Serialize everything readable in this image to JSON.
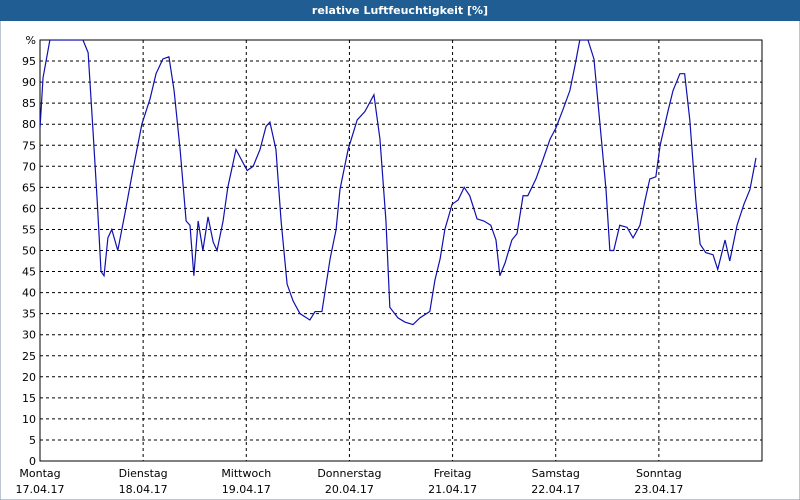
{
  "chart_data": {
    "type": "line",
    "title": "relative Luftfeuchtigkeit [%]",
    "x": [
      0,
      0.7,
      2.3,
      10,
      11.2,
      12.3,
      13.3,
      14.2,
      14.9,
      15.8,
      16.7,
      18.1,
      19.8,
      21.6,
      23.7,
      25.6,
      27,
      28.6,
      30,
      31.2,
      32.6,
      34,
      34.9,
      35.8,
      36.8,
      37.9,
      39.1,
      40.3,
      41.2,
      42.6,
      43.7,
      45.6,
      48.2,
      49.6,
      51.2,
      52.6,
      53.5,
      54.9,
      56.1,
      57.5,
      58.9,
      60.5,
      62.8,
      64,
      65.6,
      67.5,
      68.9,
      69.8,
      71.7,
      73.8,
      75.6,
      77.7,
      79.1,
      80.5,
      81.4,
      83.3,
      84.9,
      86.8,
      88.4,
      90.7,
      91.9,
      93.1,
      94.2,
      95.9,
      97.3,
      98.7,
      100,
      101.7,
      103.3,
      104.9,
      106.1,
      107,
      108.2,
      109.8,
      111,
      112.4,
      113.5,
      115.4,
      117,
      118.7,
      120,
      121.7,
      123.3,
      124.5,
      125.6,
      127.5,
      128.9,
      130.3,
      131.7,
      132.6,
      133.5,
      134.9,
      136.6,
      138,
      139.6,
      140.8,
      141.9,
      143.3,
      144.3,
      146.1,
      147.3,
      148.9,
      150,
      151.2,
      152.6,
      153.6,
      154.9,
      156.6,
      157.7,
      159.4,
      160.5,
      162.2,
      163.8,
      165.2,
      166.6
    ],
    "series": [
      {
        "name": "relative Luftfeuchtigkeit",
        "color": "#1010b0",
        "values": [
          79,
          91,
          100,
          100,
          97,
          79,
          62,
          45,
          44,
          53,
          55,
          50,
          59,
          69,
          80,
          86,
          92,
          95.5,
          96,
          88,
          74,
          57,
          56,
          44,
          57,
          50,
          58,
          52,
          50,
          57,
          65,
          74,
          69,
          70,
          74,
          79.5,
          80.5,
          74,
          57,
          42,
          38,
          35,
          33.5,
          35.5,
          35.5,
          48,
          55,
          64.5,
          74,
          81,
          83,
          87,
          76.5,
          57,
          36.5,
          34,
          33,
          32.4,
          34,
          35.5,
          43,
          48,
          55,
          61,
          62,
          65,
          63,
          57.5,
          57,
          56,
          52.5,
          44,
          47,
          52.5,
          54,
          63,
          63,
          67,
          71.5,
          76.5,
          79,
          83.5,
          88,
          94,
          100,
          100,
          95.5,
          80,
          64.5,
          50,
          50,
          56,
          55.5,
          53,
          56,
          62,
          67,
          67.5,
          75,
          83,
          88,
          92,
          92,
          81,
          62,
          51.5,
          49.5,
          49,
          45.5,
          52.5,
          47.5,
          56,
          61,
          64.5,
          72
        ]
      }
    ],
    "xlim": [
      0,
      168
    ],
    "xticks": [
      {
        "value": 0,
        "label": [
          "Montag",
          "17.04.17"
        ]
      },
      {
        "value": 24,
        "label": [
          "Dienstag",
          "18.04.17"
        ]
      },
      {
        "value": 48,
        "label": [
          "Mittwoch",
          "19.04.17"
        ]
      },
      {
        "value": 72,
        "label": [
          "Donnerstag",
          "20.04.17"
        ]
      },
      {
        "value": 96,
        "label": [
          "Freitag",
          "21.04.17"
        ]
      },
      {
        "value": 120,
        "label": [
          "Samstag",
          "22.04.17"
        ]
      },
      {
        "value": 144,
        "label": [
          "Sonntag",
          "23.04.17"
        ]
      }
    ],
    "ylim": [
      0,
      100
    ],
    "yticks": [
      0,
      5,
      10,
      15,
      20,
      25,
      30,
      35,
      40,
      45,
      50,
      55,
      60,
      65,
      70,
      75,
      80,
      85,
      90,
      95,
      {
        "value": 100,
        "label": "%"
      }
    ],
    "grid": true
  }
}
